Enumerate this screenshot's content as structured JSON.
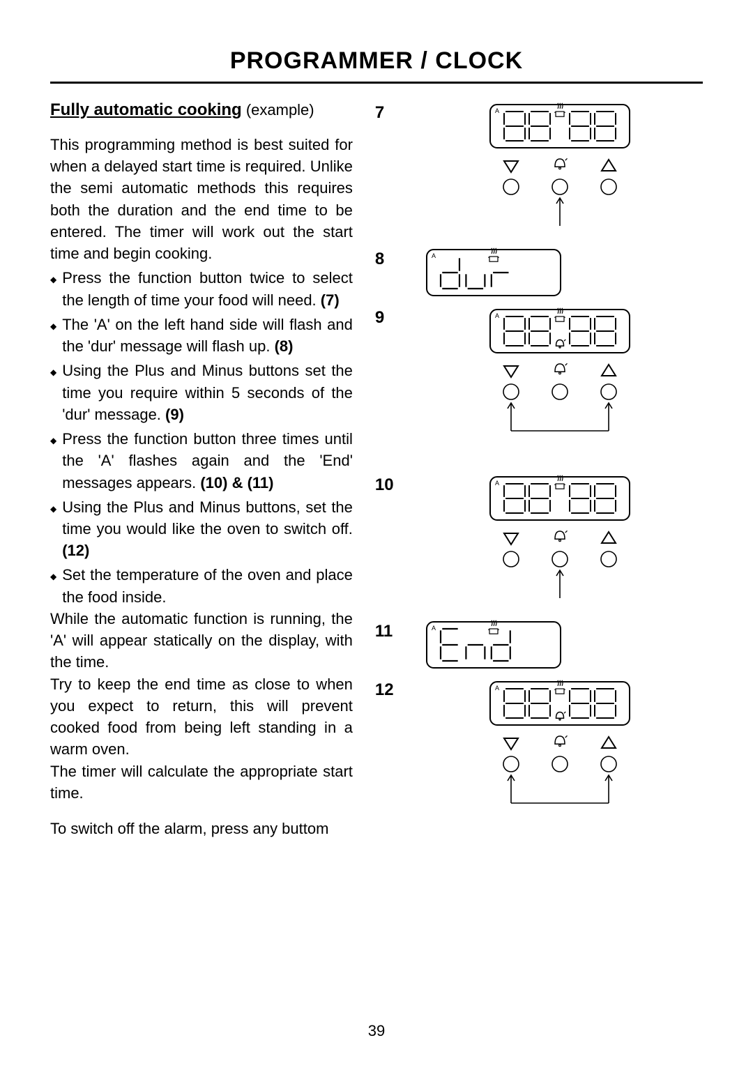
{
  "page": {
    "title": "PROGRAMMER / CLOCK",
    "page_number": "39"
  },
  "left": {
    "heading": "Fully automatic cooking",
    "example": " (example)",
    "intro": "This programming method is best suited for when a delayed start time is required.  Unlike the semi automatic methods this requires both the duration and the end time to be entered.  The timer will work out the start time and begin cooking.",
    "bullets": [
      {
        "text": "Press the function button twice to select the length of time your food will need.  ",
        "ref": "(7)"
      },
      {
        "text": "The 'A' on the left hand side will flash and the 'dur' message will flash up. ",
        "ref": "(8)"
      },
      {
        "text": "Using the Plus and Minus buttons set the time you require within 5 seconds of the 'dur' message. ",
        "ref": "(9)"
      },
      {
        "text": "Press the function button three times until the 'A' flashes again and the 'End' messages appears.   ",
        "ref": "(10) & (11)"
      },
      {
        "text": "Using the Plus and Minus buttons, set the time you would like the oven to switch off.  ",
        "ref": "(12)"
      },
      {
        "text": "Set the temperature of the oven and place the food inside.",
        "ref": ""
      }
    ],
    "tail1": "While the automatic function is running, the 'A' will appear statically on the display, with the time.",
    "tail2": "Try to keep the end time as close to when you expect to return, this will prevent cooked food from being left standing in a warm oven.",
    "tail3": "The timer will calculate the appropriate start time.",
    "tail4": "To switch off the alarm, press any buttom"
  },
  "figs": {
    "f7": {
      "num": "7",
      "type": "panel-center",
      "display": "88:88"
    },
    "f8": {
      "num": "8",
      "type": "display",
      "display": "dur"
    },
    "f9": {
      "num": "9",
      "type": "panel-both",
      "display": "88:88"
    },
    "f10": {
      "num": "10",
      "type": "panel-center",
      "display": "88:88"
    },
    "f11": {
      "num": "11",
      "type": "display",
      "display": "End"
    },
    "f12": {
      "num": "12",
      "type": "panel-both",
      "display": "88:88"
    }
  },
  "style": {
    "stroke": "#000000",
    "bg": "#ffffff",
    "font_family": "Futura, Century Gothic, Arial",
    "title_size_pt": 26,
    "body_size_pt": 16
  }
}
